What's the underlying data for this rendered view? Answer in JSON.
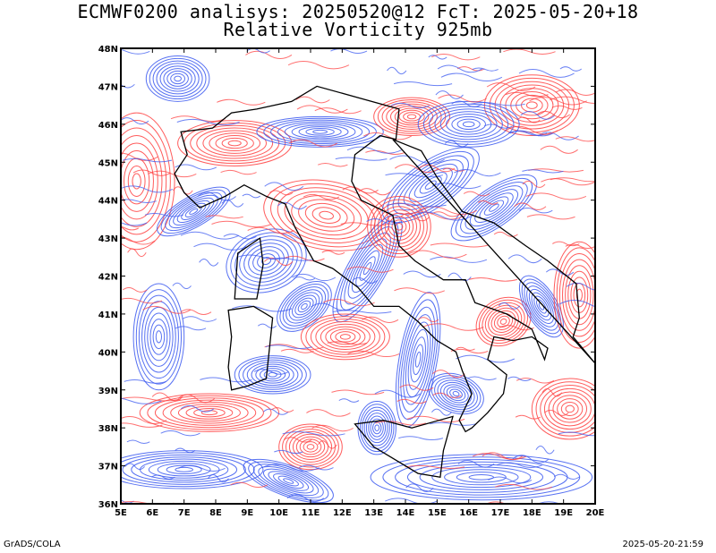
{
  "title_line1": "ECMWF0200 analisys: 20250520@12 FcT: 2025-05-20+18",
  "title_line2": "Relative Vorticity 925mb",
  "footer_left": "GrADS/COLA",
  "footer_right": "2025-05-20-21:59",
  "map": {
    "lon_labels": [
      "5E",
      "6E",
      "7E",
      "8E",
      "9E",
      "10E",
      "11E",
      "12E",
      "13E",
      "14E",
      "15E",
      "16E",
      "17E",
      "18E",
      "19E",
      "20E"
    ],
    "lat_labels": [
      "48N",
      "47N",
      "46N",
      "45N",
      "44N",
      "43N",
      "42N",
      "41N",
      "40N",
      "39N",
      "38N",
      "37N",
      "36N"
    ],
    "positive_color": "#ff4040",
    "negative_color": "#3a58f0",
    "coast_color": "#000000"
  }
}
